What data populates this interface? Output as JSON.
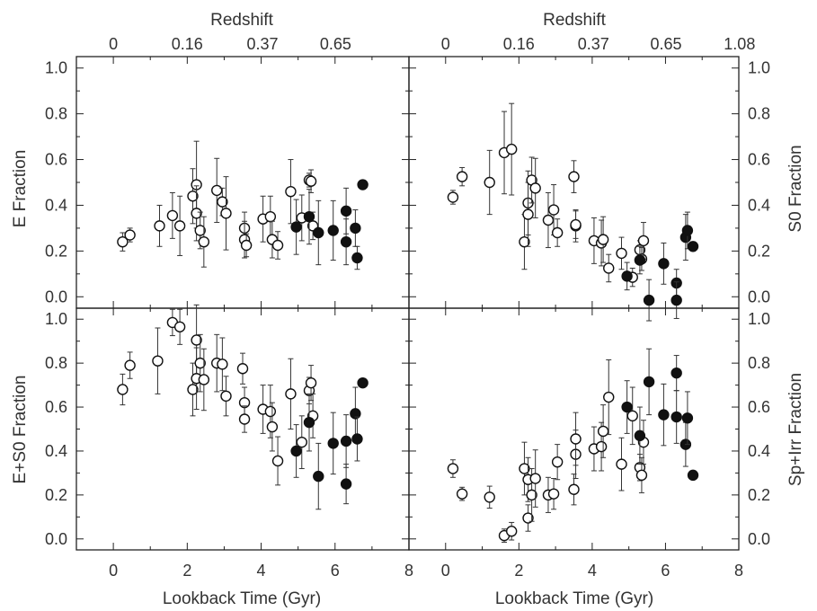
{
  "chart_data": [
    {
      "type": "scatter",
      "panel": "top-left",
      "xlabel": "",
      "ylabel": "E Fraction",
      "top_axis_label": "Redshift",
      "xlim": [
        -1,
        8
      ],
      "ylim": [
        -0.05,
        1.05
      ],
      "x_ticks": [
        "0",
        "2",
        "4",
        "6",
        "8"
      ],
      "y_ticks": [
        "0.0",
        "0.2",
        "0.4",
        "0.6",
        "0.8",
        "1.0"
      ],
      "redshift_ticks": [
        "0",
        "0.16",
        "0.37",
        "0.65"
      ],
      "series": [
        {
          "marker": "open",
          "points": [
            {
              "x": 0.25,
              "y": 0.24,
              "err": 0.04
            },
            {
              "x": 0.45,
              "y": 0.27,
              "err": 0.03
            },
            {
              "x": 1.25,
              "y": 0.31,
              "err": 0.09
            },
            {
              "x": 1.6,
              "y": 0.355,
              "err": 0.1
            },
            {
              "x": 1.8,
              "y": 0.31,
              "err": 0.13
            },
            {
              "x": 2.15,
              "y": 0.44,
              "err": 0.12
            },
            {
              "x": 2.25,
              "y": 0.49,
              "err": 0.19
            },
            {
              "x": 2.25,
              "y": 0.365,
              "err": 0.12
            },
            {
              "x": 2.35,
              "y": 0.29,
              "err": 0.08
            },
            {
              "x": 2.45,
              "y": 0.24,
              "err": 0.11
            },
            {
              "x": 2.8,
              "y": 0.465,
              "err": 0.14
            },
            {
              "x": 2.95,
              "y": 0.415,
              "err": 0.06
            },
            {
              "x": 3.05,
              "y": 0.365,
              "err": 0.16
            },
            {
              "x": 3.55,
              "y": 0.3,
              "err": 0.07
            },
            {
              "x": 3.55,
              "y": 0.25,
              "err": 0.08
            },
            {
              "x": 3.6,
              "y": 0.225,
              "err": 0.05
            },
            {
              "x": 4.05,
              "y": 0.34,
              "err": 0.1
            },
            {
              "x": 4.25,
              "y": 0.35,
              "err": 0.09
            },
            {
              "x": 4.3,
              "y": 0.25,
              "err": 0.08
            },
            {
              "x": 4.45,
              "y": 0.225,
              "err": 0.06
            },
            {
              "x": 4.8,
              "y": 0.46,
              "err": 0.14
            },
            {
              "x": 5.1,
              "y": 0.345,
              "err": 0.1
            },
            {
              "x": 5.3,
              "y": 0.51,
              "err": 0.03
            },
            {
              "x": 5.35,
              "y": 0.505,
              "err": 0.05
            },
            {
              "x": 5.4,
              "y": 0.31,
              "err": 0.06
            }
          ]
        },
        {
          "marker": "filled",
          "points": [
            {
              "x": 4.95,
              "y": 0.305,
              "err": 0.12
            },
            {
              "x": 5.3,
              "y": 0.35,
              "err": 0.12
            },
            {
              "x": 5.55,
              "y": 0.28,
              "err": 0.14
            },
            {
              "x": 5.95,
              "y": 0.29,
              "err": 0.13
            },
            {
              "x": 6.3,
              "y": 0.375,
              "err": 0.1
            },
            {
              "x": 6.3,
              "y": 0.24,
              "err": 0.1
            },
            {
              "x": 6.55,
              "y": 0.3,
              "err": 0.08
            },
            {
              "x": 6.6,
              "y": 0.17,
              "err": 0.05
            },
            {
              "x": 6.75,
              "y": 0.49,
              "err": 0.02
            }
          ]
        }
      ]
    },
    {
      "type": "scatter",
      "panel": "top-right",
      "xlabel": "",
      "ylabel": "S0 Fraction",
      "top_axis_label": "Redshift",
      "xlim": [
        -1,
        8
      ],
      "ylim": [
        -0.05,
        1.05
      ],
      "x_ticks": [
        "0",
        "2",
        "4",
        "6",
        "8"
      ],
      "y_ticks": [
        "0.0",
        "0.2",
        "0.4",
        "0.6",
        "0.8",
        "1.0"
      ],
      "redshift_ticks": [
        "0",
        "0.16",
        "0.37",
        "0.65",
        "1.08"
      ],
      "series": [
        {
          "marker": "open",
          "points": [
            {
              "x": 0.2,
              "y": 0.435,
              "err": 0.03
            },
            {
              "x": 0.45,
              "y": 0.525,
              "err": 0.04
            },
            {
              "x": 1.2,
              "y": 0.5,
              "err": 0.14
            },
            {
              "x": 1.6,
              "y": 0.63,
              "err": 0.18
            },
            {
              "x": 1.8,
              "y": 0.645,
              "err": 0.2
            },
            {
              "x": 2.15,
              "y": 0.24,
              "err": 0.12
            },
            {
              "x": 2.25,
              "y": 0.41,
              "err": 0.14
            },
            {
              "x": 2.25,
              "y": 0.36,
              "err": 0.14
            },
            {
              "x": 2.35,
              "y": 0.51,
              "err": 0.1
            },
            {
              "x": 2.45,
              "y": 0.475,
              "err": 0.13
            },
            {
              "x": 2.8,
              "y": 0.335,
              "err": 0.12
            },
            {
              "x": 2.95,
              "y": 0.38,
              "err": 0.11
            },
            {
              "x": 3.05,
              "y": 0.28,
              "err": 0.06
            },
            {
              "x": 3.5,
              "y": 0.525,
              "err": 0.07
            },
            {
              "x": 3.55,
              "y": 0.31,
              "err": 0.07
            },
            {
              "x": 3.55,
              "y": 0.315,
              "err": 0.06
            },
            {
              "x": 4.05,
              "y": 0.245,
              "err": 0.1
            },
            {
              "x": 4.25,
              "y": 0.235,
              "err": 0.1
            },
            {
              "x": 4.3,
              "y": 0.25,
              "err": 0.1
            },
            {
              "x": 4.45,
              "y": 0.125,
              "err": 0.06
            },
            {
              "x": 4.8,
              "y": 0.19,
              "err": 0.07
            },
            {
              "x": 5.1,
              "y": 0.085,
              "err": 0.04
            },
            {
              "x": 5.3,
              "y": 0.205,
              "err": 0.04
            },
            {
              "x": 5.35,
              "y": 0.165,
              "err": 0.05
            },
            {
              "x": 5.4,
              "y": 0.245,
              "err": 0.08
            }
          ]
        },
        {
          "marker": "filled",
          "points": [
            {
              "x": 4.95,
              "y": 0.09,
              "err": 0.06
            },
            {
              "x": 5.3,
              "y": 0.16,
              "err": 0.06
            },
            {
              "x": 5.55,
              "y": -0.015,
              "err": 0.09
            },
            {
              "x": 5.95,
              "y": 0.145,
              "err": 0.09
            },
            {
              "x": 6.3,
              "y": 0.06,
              "err": 0.06
            },
            {
              "x": 6.3,
              "y": -0.015,
              "err": 0.08
            },
            {
              "x": 6.55,
              "y": 0.26,
              "err": 0.1
            },
            {
              "x": 6.6,
              "y": 0.29,
              "err": 0.08
            },
            {
              "x": 6.75,
              "y": 0.22,
              "err": 0.02
            }
          ]
        }
      ]
    },
    {
      "type": "scatter",
      "panel": "bottom-left",
      "xlabel": "Lookback Time (Gyr)",
      "ylabel": "E+S0 Fraction",
      "xlim": [
        -1,
        8
      ],
      "ylim": [
        -0.05,
        1.05
      ],
      "x_ticks": [
        "0",
        "2",
        "4",
        "6",
        "8"
      ],
      "y_ticks": [
        "0.0",
        "0.2",
        "0.4",
        "0.6",
        "0.8",
        "1.0"
      ],
      "series": [
        {
          "marker": "open",
          "points": [
            {
              "x": 0.25,
              "y": 0.68,
              "err": 0.07
            },
            {
              "x": 0.45,
              "y": 0.79,
              "err": 0.06
            },
            {
              "x": 1.2,
              "y": 0.81,
              "err": 0.15
            },
            {
              "x": 1.6,
              "y": 0.985,
              "err": 0.06
            },
            {
              "x": 1.8,
              "y": 0.965,
              "err": 0.08
            },
            {
              "x": 2.15,
              "y": 0.68,
              "err": 0.12
            },
            {
              "x": 2.25,
              "y": 0.905,
              "err": 0.16
            },
            {
              "x": 2.25,
              "y": 0.73,
              "err": 0.14
            },
            {
              "x": 2.35,
              "y": 0.8,
              "err": 0.13
            },
            {
              "x": 2.45,
              "y": 0.725,
              "err": 0.14
            },
            {
              "x": 2.8,
              "y": 0.8,
              "err": 0.13
            },
            {
              "x": 2.95,
              "y": 0.795,
              "err": 0.12
            },
            {
              "x": 3.05,
              "y": 0.65,
              "err": 0.09
            },
            {
              "x": 3.5,
              "y": 0.775,
              "err": 0.07
            },
            {
              "x": 3.55,
              "y": 0.62,
              "err": 0.07
            },
            {
              "x": 3.55,
              "y": 0.545,
              "err": 0.06
            },
            {
              "x": 4.05,
              "y": 0.59,
              "err": 0.11
            },
            {
              "x": 4.25,
              "y": 0.58,
              "err": 0.12
            },
            {
              "x": 4.3,
              "y": 0.51,
              "err": 0.11
            },
            {
              "x": 4.45,
              "y": 0.355,
              "err": 0.11
            },
            {
              "x": 4.8,
              "y": 0.66,
              "err": 0.16
            },
            {
              "x": 5.1,
              "y": 0.44,
              "err": 0.12
            },
            {
              "x": 5.3,
              "y": 0.675,
              "err": 0.06
            },
            {
              "x": 5.35,
              "y": 0.71,
              "err": 0.08
            },
            {
              "x": 5.4,
              "y": 0.56,
              "err": 0.1
            }
          ]
        },
        {
          "marker": "filled",
          "points": [
            {
              "x": 4.95,
              "y": 0.4,
              "err": 0.12
            },
            {
              "x": 5.3,
              "y": 0.53,
              "err": 0.13
            },
            {
              "x": 5.55,
              "y": 0.285,
              "err": 0.15
            },
            {
              "x": 5.95,
              "y": 0.435,
              "err": 0.14
            },
            {
              "x": 6.3,
              "y": 0.445,
              "err": 0.12
            },
            {
              "x": 6.3,
              "y": 0.25,
              "err": 0.09
            },
            {
              "x": 6.55,
              "y": 0.57,
              "err": 0.12
            },
            {
              "x": 6.6,
              "y": 0.455,
              "err": 0.1
            },
            {
              "x": 6.75,
              "y": 0.71,
              "err": 0.02
            }
          ]
        }
      ]
    },
    {
      "type": "scatter",
      "panel": "bottom-right",
      "xlabel": "Lookback Time (Gyr)",
      "ylabel": "Sp+Irr Fraction",
      "xlim": [
        -1,
        8
      ],
      "ylim": [
        -0.05,
        1.05
      ],
      "x_ticks": [
        "0",
        "2",
        "4",
        "6",
        "8"
      ],
      "y_ticks": [
        "0.0",
        "0.2",
        "0.4",
        "0.6",
        "0.8",
        "1.0"
      ],
      "series": [
        {
          "marker": "open",
          "points": [
            {
              "x": 0.2,
              "y": 0.32,
              "err": 0.04
            },
            {
              "x": 0.45,
              "y": 0.205,
              "err": 0.03
            },
            {
              "x": 1.2,
              "y": 0.19,
              "err": 0.05
            },
            {
              "x": 1.6,
              "y": 0.015,
              "err": 0.03
            },
            {
              "x": 1.8,
              "y": 0.035,
              "err": 0.04
            },
            {
              "x": 2.15,
              "y": 0.32,
              "err": 0.12
            },
            {
              "x": 2.25,
              "y": 0.27,
              "err": 0.1
            },
            {
              "x": 2.25,
              "y": 0.095,
              "err": 0.06
            },
            {
              "x": 2.35,
              "y": 0.2,
              "err": 0.12
            },
            {
              "x": 2.45,
              "y": 0.275,
              "err": 0.13
            },
            {
              "x": 2.8,
              "y": 0.2,
              "err": 0.08
            },
            {
              "x": 2.95,
              "y": 0.205,
              "err": 0.07
            },
            {
              "x": 3.05,
              "y": 0.35,
              "err": 0.08
            },
            {
              "x": 3.5,
              "y": 0.225,
              "err": 0.07
            },
            {
              "x": 3.55,
              "y": 0.385,
              "err": 0.11
            },
            {
              "x": 3.55,
              "y": 0.455,
              "err": 0.12
            },
            {
              "x": 4.05,
              "y": 0.41,
              "err": 0.1
            },
            {
              "x": 4.25,
              "y": 0.42,
              "err": 0.11
            },
            {
              "x": 4.3,
              "y": 0.49,
              "err": 0.12
            },
            {
              "x": 4.45,
              "y": 0.645,
              "err": 0.17
            },
            {
              "x": 4.8,
              "y": 0.34,
              "err": 0.12
            },
            {
              "x": 5.1,
              "y": 0.56,
              "err": 0.13
            },
            {
              "x": 5.3,
              "y": 0.325,
              "err": 0.06
            },
            {
              "x": 5.35,
              "y": 0.29,
              "err": 0.08
            },
            {
              "x": 5.4,
              "y": 0.44,
              "err": 0.1
            }
          ]
        },
        {
          "marker": "filled",
          "points": [
            {
              "x": 4.95,
              "y": 0.6,
              "err": 0.12
            },
            {
              "x": 5.3,
              "y": 0.47,
              "err": 0.13
            },
            {
              "x": 5.55,
              "y": 0.715,
              "err": 0.15
            },
            {
              "x": 5.95,
              "y": 0.565,
              "err": 0.14
            },
            {
              "x": 6.3,
              "y": 0.755,
              "err": 0.08
            },
            {
              "x": 6.3,
              "y": 0.555,
              "err": 0.12
            },
            {
              "x": 6.55,
              "y": 0.43,
              "err": 0.1
            },
            {
              "x": 6.6,
              "y": 0.55,
              "err": 0.12
            },
            {
              "x": 6.75,
              "y": 0.29,
              "err": 0.02
            }
          ]
        }
      ]
    }
  ]
}
